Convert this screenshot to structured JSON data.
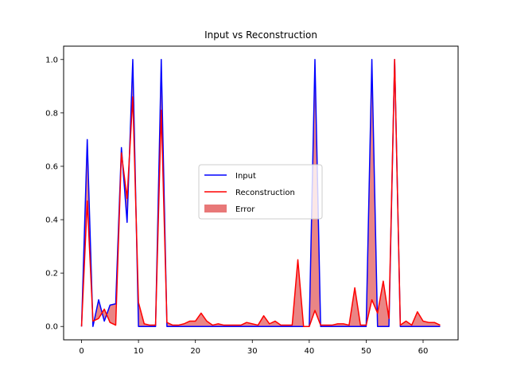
{
  "chart_data": {
    "type": "line",
    "title": "Input vs Reconstruction",
    "xlabel": "",
    "ylabel": "",
    "xlim": [
      -3.15,
      66.15
    ],
    "ylim": [
      -0.05,
      1.05
    ],
    "xticks": [
      0,
      10,
      20,
      30,
      40,
      50,
      60
    ],
    "yticks": [
      0.0,
      0.2,
      0.4,
      0.6,
      0.8,
      1.0
    ],
    "xtick_labels": [
      "0",
      "10",
      "20",
      "30",
      "40",
      "50",
      "60"
    ],
    "ytick_labels": [
      "0.0",
      "0.2",
      "0.4",
      "0.6",
      "0.8",
      "1.0"
    ],
    "grid": false,
    "legend_position": "center",
    "x": [
      0,
      1,
      2,
      3,
      4,
      5,
      6,
      7,
      8,
      9,
      10,
      11,
      12,
      13,
      14,
      15,
      16,
      17,
      18,
      19,
      20,
      21,
      22,
      23,
      24,
      25,
      26,
      27,
      28,
      29,
      30,
      31,
      32,
      33,
      34,
      35,
      36,
      37,
      38,
      39,
      40,
      41,
      42,
      43,
      44,
      45,
      46,
      47,
      48,
      49,
      50,
      51,
      52,
      53,
      54,
      55,
      56,
      57,
      58,
      59,
      60,
      61,
      62,
      63
    ],
    "series": [
      {
        "name": "Input",
        "color": "#0000ff",
        "values": [
          0.0,
          0.7,
          0.0,
          0.1,
          0.02,
          0.08,
          0.085,
          0.67,
          0.39,
          1.0,
          0.0,
          0.0,
          0.0,
          0.0,
          1.0,
          0.0,
          0.0,
          0.0,
          0.0,
          0.0,
          0.0,
          0.0,
          0.0,
          0.0,
          0.0,
          0.0,
          0.0,
          0.0,
          0.0,
          0.0,
          0.0,
          0.0,
          0.0,
          0.0,
          0.0,
          0.0,
          0.0,
          0.0,
          0.0,
          0.0,
          0.0,
          1.0,
          0.0,
          0.0,
          0.0,
          0.0,
          0.0,
          0.0,
          0.0,
          0.0,
          0.0,
          1.0,
          0.0,
          0.0,
          0.0,
          1.0,
          0.0,
          0.0,
          0.0,
          0.0,
          0.0,
          0.0,
          0.0,
          0.0
        ]
      },
      {
        "name": "Reconstruction",
        "color": "#ff0000",
        "values": [
          0.0,
          0.47,
          0.02,
          0.03,
          0.065,
          0.015,
          0.005,
          0.65,
          0.48,
          0.86,
          0.09,
          0.01,
          0.005,
          0.005,
          0.81,
          0.015,
          0.005,
          0.005,
          0.01,
          0.02,
          0.02,
          0.05,
          0.02,
          0.005,
          0.01,
          0.005,
          0.005,
          0.005,
          0.005,
          0.015,
          0.01,
          0.005,
          0.04,
          0.01,
          0.02,
          0.005,
          0.005,
          0.005,
          0.25,
          0.0,
          0.0,
          0.06,
          0.005,
          0.005,
          0.005,
          0.01,
          0.01,
          0.005,
          0.145,
          0.005,
          0.005,
          0.1,
          0.05,
          0.17,
          0.03,
          1.0,
          0.005,
          0.02,
          0.005,
          0.055,
          0.02,
          0.015,
          0.015,
          0.005
        ]
      }
    ],
    "fill": {
      "name": "Error",
      "color": "#e87878"
    }
  }
}
